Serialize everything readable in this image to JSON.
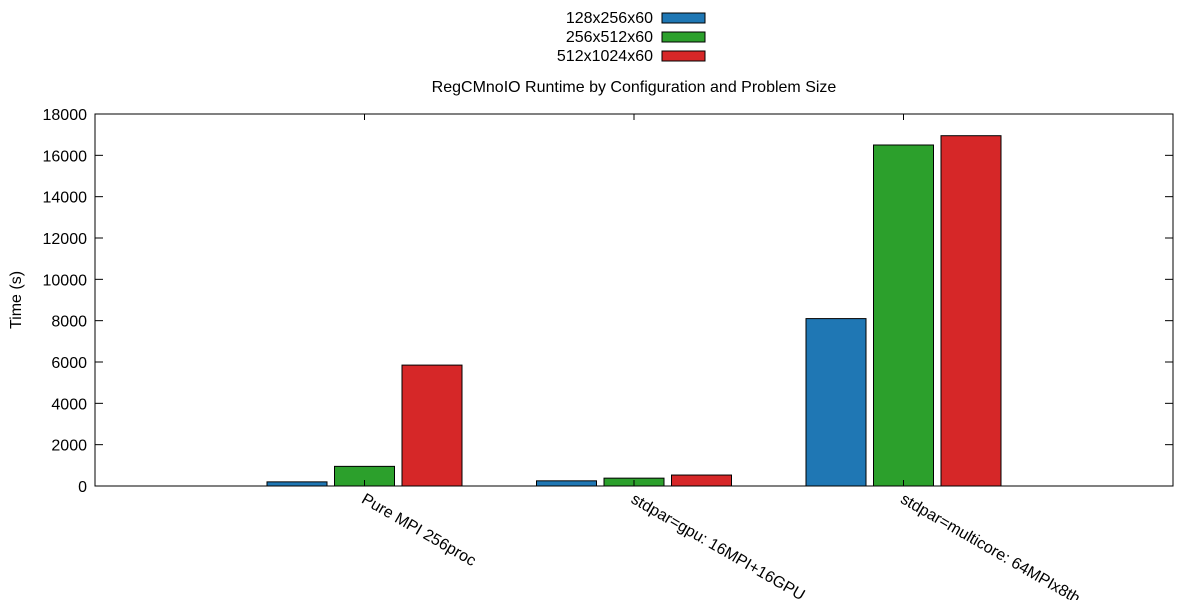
{
  "chart_data": {
    "type": "bar",
    "title": "RegCMnoIO Runtime by Configuration and Problem Size",
    "xlabel": "",
    "ylabel": "Time (s)",
    "ylim": [
      0,
      18000
    ],
    "yticks": [
      0,
      2000,
      4000,
      6000,
      8000,
      10000,
      12000,
      14000,
      16000,
      18000
    ],
    "categories": [
      "Pure MPI 256proc",
      "stdpar=gpu: 16MPI+16GPU",
      "stdpar=multicore: 64MPIx8th"
    ],
    "series": [
      {
        "name": "128x256x60",
        "color": "#1f77b4",
        "values": [
          200,
          250,
          8100
        ]
      },
      {
        "name": "256x512x60",
        "color": "#2ca02c",
        "values": [
          950,
          380,
          16500
        ]
      },
      {
        "name": "512x1024x60",
        "color": "#d62728",
        "values": [
          5850,
          530,
          16950
        ]
      }
    ],
    "grid": false,
    "legend_position": "top-center"
  }
}
